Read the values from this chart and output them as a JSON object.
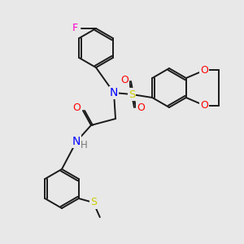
{
  "background_color": "#e8e8e8",
  "bond_color": "#1a1a1a",
  "atom_colors": {
    "F": "#ff00cc",
    "N": "#0000ff",
    "O": "#ff0000",
    "S_sulfonyl": "#cccc00",
    "S_thio": "#cccc00",
    "H": "#777777",
    "C": "#1a1a1a"
  }
}
